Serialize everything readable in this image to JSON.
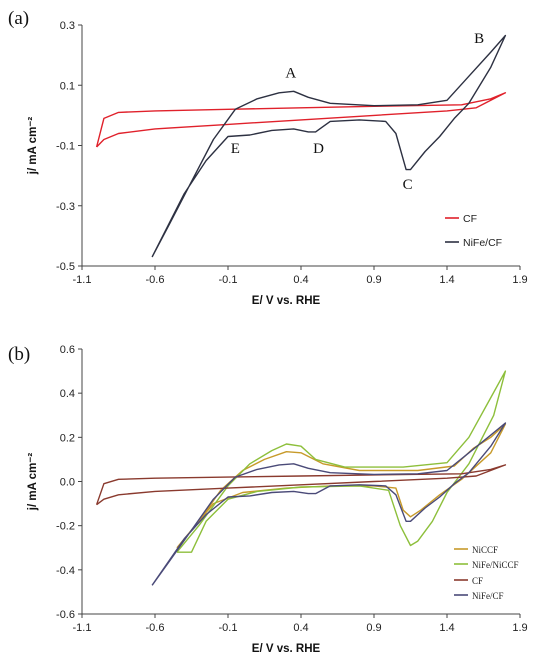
{
  "chart_data": [
    {
      "panel": "(a)",
      "type": "line",
      "xlabel": "E/ V vs. RHE",
      "ylabel": "j/ mA cm⁻²",
      "xlim": [
        -1.1,
        1.9
      ],
      "ylim": [
        -0.5,
        0.3
      ],
      "xticks": [
        "-1.1",
        "-0.6",
        "-0.1",
        "0.4",
        "0.9",
        "1.4",
        "1.9"
      ],
      "yticks": [
        "0.3",
        "0.1",
        "-0.1",
        "-0.3",
        "-0.5"
      ],
      "grid": false,
      "legend_position": "bottom-right",
      "annotations": [
        {
          "text": "A",
          "x": 0.33,
          "y": 0.125
        },
        {
          "text": "B",
          "x": 1.62,
          "y": 0.24
        },
        {
          "text": "C",
          "x": 1.13,
          "y": -0.245
        },
        {
          "text": "D",
          "x": 0.52,
          "y": -0.125
        },
        {
          "text": "E",
          "x": -0.05,
          "y": -0.125
        }
      ],
      "series": [
        {
          "name": "CF",
          "color": "#e0212b",
          "points": [
            [
              -1.0,
              -0.105
            ],
            [
              -0.95,
              -0.08
            ],
            [
              -0.85,
              -0.06
            ],
            [
              -0.6,
              -0.045
            ],
            [
              -0.1,
              -0.03
            ],
            [
              0.4,
              -0.015
            ],
            [
              0.9,
              0.0
            ],
            [
              1.4,
              0.015
            ],
            [
              1.6,
              0.025
            ],
            [
              1.8,
              0.075
            ],
            [
              1.7,
              0.055
            ],
            [
              1.5,
              0.035
            ],
            [
              0.9,
              0.03
            ],
            [
              0.4,
              0.025
            ],
            [
              -0.1,
              0.02
            ],
            [
              -0.6,
              0.015
            ],
            [
              -0.85,
              0.01
            ],
            [
              -0.95,
              -0.01
            ],
            [
              -1.0,
              -0.105
            ]
          ]
        },
        {
          "name": "NiFe/CF",
          "color": "#2d3142",
          "points": [
            [
              -0.62,
              -0.47
            ],
            [
              -0.5,
              -0.36
            ],
            [
              -0.35,
              -0.22
            ],
            [
              -0.2,
              -0.08
            ],
            [
              -0.05,
              0.02
            ],
            [
              0.1,
              0.055
            ],
            [
              0.25,
              0.075
            ],
            [
              0.35,
              0.08
            ],
            [
              0.45,
              0.06
            ],
            [
              0.6,
              0.04
            ],
            [
              0.9,
              0.032
            ],
            [
              1.2,
              0.035
            ],
            [
              1.4,
              0.05
            ],
            [
              1.55,
              0.13
            ],
            [
              1.7,
              0.21
            ],
            [
              1.8,
              0.265
            ],
            [
              1.7,
              0.16
            ],
            [
              1.55,
              0.04
            ],
            [
              1.45,
              -0.01
            ],
            [
              1.35,
              -0.07
            ],
            [
              1.25,
              -0.12
            ],
            [
              1.15,
              -0.18
            ],
            [
              1.12,
              -0.18
            ],
            [
              1.05,
              -0.06
            ],
            [
              0.98,
              -0.02
            ],
            [
              0.8,
              -0.015
            ],
            [
              0.6,
              -0.02
            ],
            [
              0.5,
              -0.055
            ],
            [
              0.45,
              -0.055
            ],
            [
              0.35,
              -0.045
            ],
            [
              0.2,
              -0.05
            ],
            [
              0.05,
              -0.065
            ],
            [
              -0.1,
              -0.07
            ],
            [
              -0.25,
              -0.15
            ],
            [
              -0.4,
              -0.26
            ],
            [
              -0.62,
              -0.47
            ]
          ]
        }
      ]
    },
    {
      "panel": "(b)",
      "type": "line",
      "xlabel": "E/ V  vs. RHE",
      "ylabel": "j/ mA cm⁻²",
      "xlim": [
        -1.1,
        1.9
      ],
      "ylim": [
        -0.6,
        0.6
      ],
      "xticks": [
        "-1.1",
        "-0.6",
        "-0.1",
        "0.4",
        "0.9",
        "1.4",
        "1.9"
      ],
      "yticks": [
        "0.6",
        "0.4",
        "0.2",
        "0.0",
        "-0.2",
        "-0.4",
        "-0.6"
      ],
      "grid": false,
      "legend_position": "bottom-right",
      "series": [
        {
          "name": "NiCCF",
          "color": "#c79a2a",
          "points": [
            [
              -0.45,
              -0.3
            ],
            [
              -0.3,
              -0.18
            ],
            [
              -0.15,
              -0.04
            ],
            [
              0.0,
              0.05
            ],
            [
              0.15,
              0.1
            ],
            [
              0.3,
              0.135
            ],
            [
              0.4,
              0.13
            ],
            [
              0.55,
              0.08
            ],
            [
              0.8,
              0.05
            ],
            [
              1.2,
              0.05
            ],
            [
              1.45,
              0.07
            ],
            [
              1.58,
              0.15
            ],
            [
              1.7,
              0.2
            ],
            [
              1.8,
              0.26
            ],
            [
              1.7,
              0.13
            ],
            [
              1.5,
              0.01
            ],
            [
              1.35,
              -0.06
            ],
            [
              1.22,
              -0.13
            ],
            [
              1.15,
              -0.16
            ],
            [
              1.1,
              -0.13
            ],
            [
              1.05,
              -0.03
            ],
            [
              0.9,
              -0.02
            ],
            [
              0.6,
              -0.02
            ],
            [
              0.3,
              -0.03
            ],
            [
              0.0,
              -0.05
            ],
            [
              -0.2,
              -0.1
            ],
            [
              -0.35,
              -0.22
            ],
            [
              -0.45,
              -0.3
            ]
          ]
        },
        {
          "name": "NiFe/NiCCF",
          "color": "#8dbf3b",
          "points": [
            [
              -0.45,
              -0.32
            ],
            [
              -0.3,
              -0.2
            ],
            [
              -0.1,
              -0.02
            ],
            [
              0.05,
              0.08
            ],
            [
              0.2,
              0.14
            ],
            [
              0.3,
              0.17
            ],
            [
              0.4,
              0.16
            ],
            [
              0.5,
              0.1
            ],
            [
              0.7,
              0.065
            ],
            [
              1.1,
              0.065
            ],
            [
              1.4,
              0.085
            ],
            [
              1.55,
              0.2
            ],
            [
              1.7,
              0.38
            ],
            [
              1.8,
              0.5
            ],
            [
              1.72,
              0.3
            ],
            [
              1.55,
              0.08
            ],
            [
              1.4,
              -0.05
            ],
            [
              1.3,
              -0.18
            ],
            [
              1.2,
              -0.27
            ],
            [
              1.15,
              -0.29
            ],
            [
              1.08,
              -0.2
            ],
            [
              1.0,
              -0.04
            ],
            [
              0.8,
              -0.02
            ],
            [
              0.4,
              -0.025
            ],
            [
              0.1,
              -0.045
            ],
            [
              -0.1,
              -0.08
            ],
            [
              -0.25,
              -0.18
            ],
            [
              -0.35,
              -0.32
            ],
            [
              -0.45,
              -0.32
            ]
          ]
        },
        {
          "name": "CF",
          "color": "#8a3a2e",
          "points": [
            [
              -1.0,
              -0.105
            ],
            [
              -0.95,
              -0.08
            ],
            [
              -0.85,
              -0.06
            ],
            [
              -0.6,
              -0.045
            ],
            [
              -0.1,
              -0.03
            ],
            [
              0.4,
              -0.015
            ],
            [
              0.9,
              0.0
            ],
            [
              1.4,
              0.015
            ],
            [
              1.6,
              0.025
            ],
            [
              1.8,
              0.075
            ],
            [
              1.7,
              0.055
            ],
            [
              1.5,
              0.035
            ],
            [
              0.9,
              0.03
            ],
            [
              0.4,
              0.025
            ],
            [
              -0.1,
              0.02
            ],
            [
              -0.6,
              0.015
            ],
            [
              -0.85,
              0.01
            ],
            [
              -0.95,
              -0.01
            ],
            [
              -1.0,
              -0.105
            ]
          ]
        },
        {
          "name": "NiFe/CF",
          "color": "#4a4a78",
          "points": [
            [
              -0.62,
              -0.47
            ],
            [
              -0.5,
              -0.36
            ],
            [
              -0.35,
              -0.22
            ],
            [
              -0.2,
              -0.08
            ],
            [
              -0.05,
              0.02
            ],
            [
              0.1,
              0.055
            ],
            [
              0.25,
              0.075
            ],
            [
              0.35,
              0.08
            ],
            [
              0.45,
              0.06
            ],
            [
              0.6,
              0.04
            ],
            [
              0.9,
              0.032
            ],
            [
              1.2,
              0.035
            ],
            [
              1.4,
              0.05
            ],
            [
              1.55,
              0.13
            ],
            [
              1.7,
              0.21
            ],
            [
              1.8,
              0.265
            ],
            [
              1.7,
              0.16
            ],
            [
              1.55,
              0.04
            ],
            [
              1.45,
              -0.01
            ],
            [
              1.35,
              -0.07
            ],
            [
              1.25,
              -0.12
            ],
            [
              1.15,
              -0.18
            ],
            [
              1.12,
              -0.18
            ],
            [
              1.05,
              -0.06
            ],
            [
              0.98,
              -0.02
            ],
            [
              0.8,
              -0.015
            ],
            [
              0.6,
              -0.02
            ],
            [
              0.5,
              -0.055
            ],
            [
              0.45,
              -0.055
            ],
            [
              0.35,
              -0.045
            ],
            [
              0.2,
              -0.05
            ],
            [
              0.05,
              -0.065
            ],
            [
              -0.1,
              -0.07
            ],
            [
              -0.25,
              -0.15
            ],
            [
              -0.4,
              -0.26
            ],
            [
              -0.62,
              -0.47
            ]
          ]
        }
      ]
    }
  ]
}
